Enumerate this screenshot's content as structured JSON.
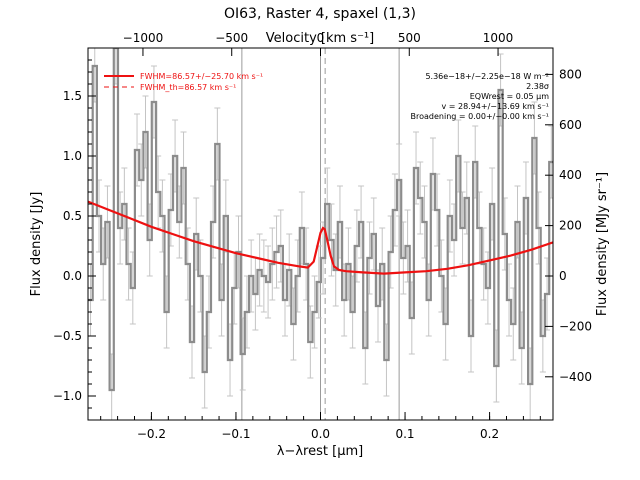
{
  "chart_data": {
    "type": "line",
    "title": "OI63, Raster 4, spaxel (1,3)",
    "xlabel": "λ−λrest [μm]",
    "ylabel": "Flux density [Jy]",
    "ylabel_right": "Flux density [MJy sr⁻¹]",
    "xlabel_top": "Velocity [km s⁻¹]",
    "xlim": [
      -0.275,
      0.275
    ],
    "ylim": [
      -1.2,
      1.9
    ],
    "top_axis": {
      "label": "Velocity [km s⁻¹]",
      "ticks": [
        {
          "x": -0.21,
          "label": "−1000"
        },
        {
          "x": -0.105,
          "label": "−500"
        },
        {
          "x": 0.0,
          "label": "0"
        },
        {
          "x": 0.105,
          "label": "500"
        },
        {
          "x": 0.21,
          "label": "1000"
        }
      ]
    },
    "right_axis": {
      "label": "Flux density [MJy sr⁻¹]",
      "ticks": [
        {
          "y": -0.84,
          "label": "−400"
        },
        {
          "y": -0.42,
          "label": "−200"
        },
        {
          "y": 0.0,
          "label": "0"
        },
        {
          "y": 0.42,
          "label": "200"
        },
        {
          "y": 0.84,
          "label": "400"
        },
        {
          "y": 1.26,
          "label": "600"
        },
        {
          "y": 1.68,
          "label": "800"
        }
      ]
    },
    "x_ticks": [
      -0.2,
      -0.1,
      0.0,
      0.1,
      0.2
    ],
    "x_tick_labels": [
      "−0.2",
      "−0.1",
      "0.0",
      "0.1",
      "0.2"
    ],
    "y_ticks": [
      -1.0,
      -0.5,
      0.0,
      0.5,
      1.0,
      1.5
    ],
    "y_tick_labels": [
      "−1.0",
      "−0.5",
      "0.0",
      "0.5",
      "1.0",
      "1.5"
    ],
    "vlines": [
      {
        "x": -0.093,
        "color": "#9a9a9a",
        "style": "solid"
      },
      {
        "x": 0.0,
        "color": "#9a9a9a",
        "style": "solid"
      },
      {
        "x": 0.0055,
        "color": "#9a9a9a",
        "style": "dashed"
      },
      {
        "x": 0.093,
        "color": "#9a9a9a",
        "style": "solid"
      }
    ],
    "series": [
      {
        "color": "#8c8c8c",
        "style": "step",
        "x": [
          -0.272,
          -0.267,
          -0.262,
          -0.257,
          -0.252,
          -0.247,
          -0.242,
          -0.237,
          -0.232,
          -0.227,
          -0.222,
          -0.217,
          -0.212,
          -0.207,
          -0.202,
          -0.197,
          -0.192,
          -0.187,
          -0.182,
          -0.177,
          -0.172,
          -0.167,
          -0.162,
          -0.157,
          -0.152,
          -0.147,
          -0.142,
          -0.137,
          -0.132,
          -0.127,
          -0.122,
          -0.117,
          -0.112,
          -0.107,
          -0.102,
          -0.097,
          -0.092,
          -0.087,
          -0.082,
          -0.077,
          -0.072,
          -0.067,
          -0.062,
          -0.057,
          -0.052,
          -0.047,
          -0.042,
          -0.037,
          -0.032,
          -0.027,
          -0.022,
          -0.017,
          -0.012,
          -0.007,
          -0.002,
          0.003,
          0.008,
          0.013,
          0.018,
          0.023,
          0.028,
          0.033,
          0.038,
          0.043,
          0.048,
          0.053,
          0.058,
          0.063,
          0.068,
          0.073,
          0.078,
          0.083,
          0.088,
          0.093,
          0.098,
          0.103,
          0.108,
          0.113,
          0.118,
          0.123,
          0.128,
          0.133,
          0.138,
          0.143,
          0.148,
          0.153,
          0.158,
          0.163,
          0.168,
          0.173,
          0.178,
          0.183,
          0.188,
          0.193,
          0.198,
          0.203,
          0.208,
          0.213,
          0.218,
          0.223,
          0.228,
          0.233,
          0.238,
          0.243,
          0.248,
          0.253,
          0.258,
          0.263,
          0.268,
          0.273
        ],
        "values": [
          -0.2,
          1.75,
          0.5,
          0.1,
          0.45,
          -0.95,
          1.9,
          0.4,
          0.6,
          0.1,
          -0.1,
          1.05,
          0.8,
          1.2,
          0.3,
          1.45,
          0.7,
          0.5,
          -0.3,
          0.55,
          1.0,
          0.45,
          0.9,
          0.1,
          -0.55,
          0.35,
          0.0,
          -0.8,
          -0.3,
          0.45,
          1.1,
          -0.2,
          0.5,
          -0.7,
          -0.1,
          0.2,
          -0.65,
          -0.3,
          0.0,
          -0.15,
          0.05,
          0.0,
          -0.05,
          0.1,
          0.2,
          0.25,
          -0.2,
          0.05,
          -0.4,
          0.0,
          0.4,
          0.1,
          -0.55,
          -0.3,
          -0.05,
          0.15,
          0.6,
          0.3,
          0.05,
          0.45,
          -0.2,
          0.1,
          -0.3,
          0.25,
          0.45,
          -0.6,
          0.15,
          0.35,
          -0.25,
          0.1,
          -0.7,
          0.2,
          0.55,
          0.8,
          0.15,
          0.25,
          -0.35,
          0.9,
          0.65,
          0.45,
          -0.2,
          0.85,
          0.55,
          0.0,
          -0.4,
          0.5,
          0.3,
          1.0,
          0.4,
          0.65,
          -0.5,
          0.95,
          0.4,
          0.1,
          -0.1,
          0.6,
          -0.75,
          1.55,
          0.35,
          -0.2,
          -0.4,
          0.45,
          -0.6,
          0.65,
          -0.9,
          1.15,
          0.4,
          -0.5,
          -0.15,
          0.95
        ],
        "errors": [
          0.3,
          0.3,
          0.3,
          0.3,
          0.3,
          0.3,
          0.3,
          0.3,
          0.3,
          0.3,
          0.3,
          0.3,
          0.3,
          0.3,
          0.3,
          0.3,
          0.3,
          0.3,
          0.3,
          0.3,
          0.3,
          0.3,
          0.3,
          0.3,
          0.3,
          0.3,
          0.3,
          0.3,
          0.3,
          0.3,
          0.3,
          0.3,
          0.3,
          0.3,
          0.3,
          0.3,
          0.3,
          0.3,
          0.3,
          0.3,
          0.3,
          0.3,
          0.3,
          0.3,
          0.3,
          0.3,
          0.3,
          0.3,
          0.3,
          0.3,
          0.3,
          0.3,
          0.3,
          0.3,
          0.3,
          0.3,
          0.3,
          0.3,
          0.3,
          0.3,
          0.3,
          0.3,
          0.3,
          0.3,
          0.3,
          0.3,
          0.3,
          0.3,
          0.3,
          0.3,
          0.3,
          0.3,
          0.3,
          0.3,
          0.3,
          0.3,
          0.3,
          0.3,
          0.3,
          0.3,
          0.3,
          0.3,
          0.3,
          0.3,
          0.3,
          0.3,
          0.3,
          0.3,
          0.3,
          0.3,
          0.3,
          0.3,
          0.3,
          0.3,
          0.3,
          0.3,
          0.3,
          0.3,
          0.3,
          0.3,
          0.3,
          0.3,
          0.3,
          0.3,
          0.3,
          0.3,
          0.3,
          0.3,
          0.3,
          0.3
        ]
      },
      {
        "name": "FWHM=86.57+/−25.70 km s⁻¹",
        "color": "#ee1111",
        "style": "solid",
        "x": [
          -0.275,
          -0.25,
          -0.225,
          -0.2,
          -0.175,
          -0.15,
          -0.125,
          -0.1,
          -0.075,
          -0.05,
          -0.025,
          -0.015,
          -0.008,
          -0.004,
          0.0,
          0.003,
          0.005,
          0.008,
          0.012,
          0.016,
          0.022,
          0.03,
          0.05,
          0.075,
          0.1,
          0.125,
          0.15,
          0.175,
          0.2,
          0.225,
          0.25,
          0.275
        ],
        "values": [
          0.62,
          0.55,
          0.48,
          0.41,
          0.35,
          0.29,
          0.24,
          0.19,
          0.15,
          0.11,
          0.08,
          0.07,
          0.12,
          0.24,
          0.36,
          0.4,
          0.39,
          0.3,
          0.17,
          0.08,
          0.05,
          0.04,
          0.03,
          0.02,
          0.03,
          0.04,
          0.06,
          0.09,
          0.13,
          0.17,
          0.22,
          0.28
        ]
      },
      {
        "name": "FWHM_th=86.57 km s⁻¹",
        "color": "#ee1111",
        "style": "dashed",
        "x": [],
        "values": []
      }
    ],
    "annotations": [
      "5.36e−18+/−2.25e−18 W m⁻²",
      "2.38σ",
      "EQWrest = 0.05 μm",
      "v = 28.94+/−13.69 km s⁻¹",
      "Broadening = 0.00+/−0.00 km s⁻¹"
    ],
    "legend_position": "top-left",
    "grid": false
  }
}
